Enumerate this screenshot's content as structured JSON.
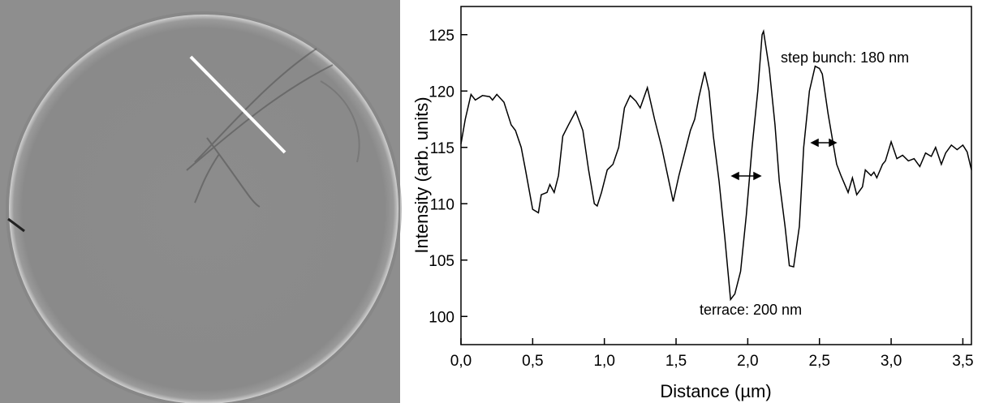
{
  "chart_data": {
    "type": "line",
    "x_label": "Distance (µm)",
    "y_label": "Intensity (arb. units)",
    "annotations": [
      "step bunch: 180 nm",
      "terrace: 200 nm"
    ],
    "color": "#000000",
    "x": [
      0,
      0.03,
      0.07,
      0.1,
      0.15,
      0.2,
      0.22,
      0.25,
      0.3,
      0.35,
      0.38,
      0.42,
      0.45,
      0.5,
      0.54,
      0.56,
      0.6,
      0.62,
      0.65,
      0.68,
      0.71,
      0.75,
      0.8,
      0.85,
      0.89,
      0.93,
      0.95,
      0.98,
      1.02,
      1.06,
      1.1,
      1.14,
      1.18,
      1.22,
      1.25,
      1.3,
      1.35,
      1.4,
      1.45,
      1.48,
      1.52,
      1.56,
      1.6,
      1.63,
      1.66,
      1.7,
      1.73,
      1.76,
      1.8,
      1.84,
      1.88,
      1.91,
      1.95,
      1.99,
      2.03,
      2.07,
      2.1,
      2.11,
      2.15,
      2.19,
      2.22,
      2.26,
      2.29,
      2.32,
      2.36,
      2.39,
      2.43,
      2.47,
      2.5,
      2.52,
      2.56,
      2.62,
      2.65,
      2.7,
      2.73,
      2.76,
      2.8,
      2.82,
      2.86,
      2.88,
      2.9,
      2.94,
      2.96,
      3.0,
      3.04,
      3.08,
      3.12,
      3.16,
      3.2,
      3.24,
      3.28,
      3.31,
      3.35,
      3.38,
      3.42,
      3.46,
      3.5,
      3.53,
      3.56
    ],
    "values": [
      115.3,
      117.5,
      119.7,
      119.2,
      119.6,
      119.5,
      119.2,
      119.7,
      119,
      117,
      116.5,
      115,
      113,
      109.5,
      109.2,
      110.8,
      111,
      111.7,
      111,
      112.5,
      116,
      117,
      118.2,
      116.5,
      113,
      110,
      109.8,
      111,
      113,
      113.5,
      115,
      118.5,
      119.6,
      119.1,
      118.5,
      120.3,
      117.5,
      115,
      112,
      110.2,
      112.5,
      114.5,
      116.5,
      117.5,
      119.5,
      121.7,
      120,
      116,
      112,
      107,
      101.5,
      102,
      104,
      109,
      115,
      120,
      125,
      125.3,
      122,
      117,
      112,
      108,
      104.5,
      104.4,
      108,
      115,
      120,
      122.2,
      122,
      121.5,
      118,
      113.5,
      112.5,
      111,
      112.3,
      110.8,
      111.5,
      113,
      112.5,
      112.8,
      112.3,
      113.5,
      113.8,
      115.5,
      114,
      114.3,
      113.8,
      114,
      113.3,
      114.5,
      114.2,
      115,
      113.5,
      114.5,
      115.2,
      114.8,
      115.2,
      114.6,
      113
    ],
    "xlim": [
      0,
      3.56
    ],
    "ylim": [
      97.5,
      127.5
    ],
    "xticks": [
      {
        "value": 0,
        "label": "0,0"
      },
      {
        "value": 0.5,
        "label": "0,5"
      },
      {
        "value": 1,
        "label": "1,0"
      },
      {
        "value": 1.5,
        "label": "1,5"
      },
      {
        "value": 2,
        "label": "2,0"
      },
      {
        "value": 2.5,
        "label": "2,5"
      },
      {
        "value": 3,
        "label": "3,0"
      },
      {
        "value": 3.5,
        "label": "3,5"
      }
    ],
    "yticks": [
      100,
      105,
      110,
      115,
      120,
      125
    ]
  }
}
